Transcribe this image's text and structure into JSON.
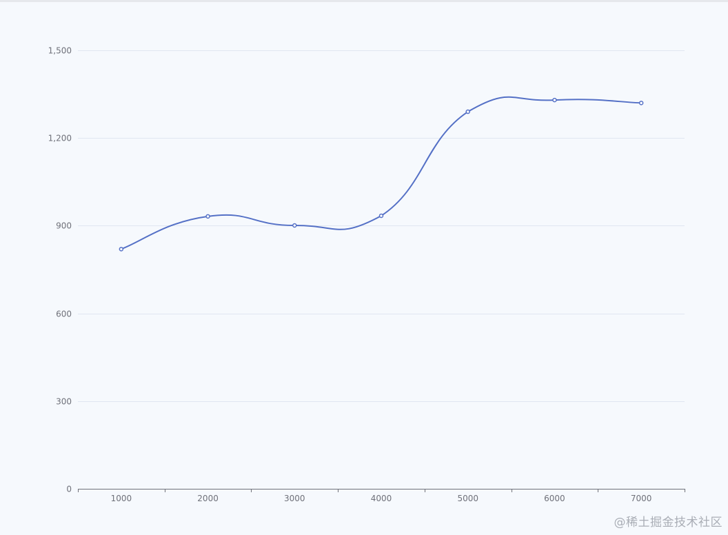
{
  "chart_data": {
    "type": "line",
    "smooth": true,
    "categories": [
      "1000",
      "2000",
      "3000",
      "4000",
      "5000",
      "6000",
      "7000"
    ],
    "series": [
      {
        "values": [
          820,
          932,
          901,
          934,
          1290,
          1330,
          1320
        ]
      }
    ],
    "ylim": [
      0,
      1500
    ],
    "yticks": [
      0,
      300,
      600,
      900,
      1200,
      1500
    ],
    "ytick_labels": [
      "0",
      "300",
      "600",
      "900",
      "1,200",
      "1,500"
    ],
    "grid": true,
    "line_color": "#5470c6",
    "axis_color": "#6e7079",
    "grid_color": "#e0e6f1",
    "title": "",
    "xlabel": "",
    "ylabel": ""
  },
  "watermark": "@稀土掘金技术社区"
}
